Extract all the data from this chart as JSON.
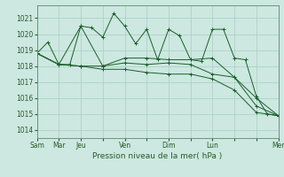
{
  "title": "",
  "xlabel": "Pression niveau de la mer( hPa )",
  "ylabel": "",
  "background_color": "#cce8e0",
  "grid_color": "#aaccc4",
  "line_color": "#1a5e2a",
  "ylim": [
    1013.5,
    1021.8
  ],
  "yticks": [
    1014,
    1015,
    1016,
    1017,
    1018,
    1019,
    1020,
    1021
  ],
  "xtick_labels": [
    "Sam",
    "Mar",
    "Jeu",
    "",
    "Ven",
    "",
    "Dim",
    "",
    "Lun",
    "",
    "",
    "Mer"
  ],
  "xtick_positions": [
    0,
    2,
    4,
    6,
    8,
    10,
    12,
    14,
    16,
    18,
    20,
    22
  ],
  "xlim": [
    0,
    22
  ],
  "series": [
    {
      "x": [
        0,
        1,
        2,
        3,
        4,
        5,
        6,
        7,
        8,
        9,
        10,
        11,
        12,
        13,
        14,
        15,
        16,
        17,
        18,
        19,
        20,
        21,
        22
      ],
      "y": [
        1018.8,
        1019.5,
        1018.1,
        1018.1,
        1020.5,
        1020.4,
        1019.8,
        1021.3,
        1020.5,
        1019.4,
        1020.3,
        1018.4,
        1020.3,
        1019.9,
        1018.4,
        1018.3,
        1020.3,
        1020.3,
        1018.5,
        1018.4,
        1016.1,
        1015.0,
        1014.9
      ],
      "marker": "+"
    },
    {
      "x": [
        0,
        2,
        4,
        6,
        8,
        10,
        12,
        14,
        16,
        18,
        20,
        22
      ],
      "y": [
        1018.8,
        1018.1,
        1020.5,
        1018.0,
        1018.5,
        1018.5,
        1018.4,
        1018.4,
        1018.5,
        1017.3,
        1016.0,
        1014.9
      ],
      "marker": "+"
    },
    {
      "x": [
        0,
        2,
        4,
        6,
        8,
        10,
        12,
        14,
        16,
        18,
        20,
        22
      ],
      "y": [
        1018.8,
        1018.1,
        1018.0,
        1018.0,
        1018.2,
        1018.1,
        1018.2,
        1018.1,
        1017.5,
        1017.3,
        1015.5,
        1014.9
      ],
      "marker": "+"
    },
    {
      "x": [
        0,
        2,
        4,
        6,
        8,
        10,
        12,
        14,
        16,
        18,
        20,
        22
      ],
      "y": [
        1018.8,
        1018.1,
        1018.0,
        1017.8,
        1017.8,
        1017.6,
        1017.5,
        1017.5,
        1017.2,
        1016.5,
        1015.1,
        1014.9
      ],
      "marker": "+"
    }
  ]
}
